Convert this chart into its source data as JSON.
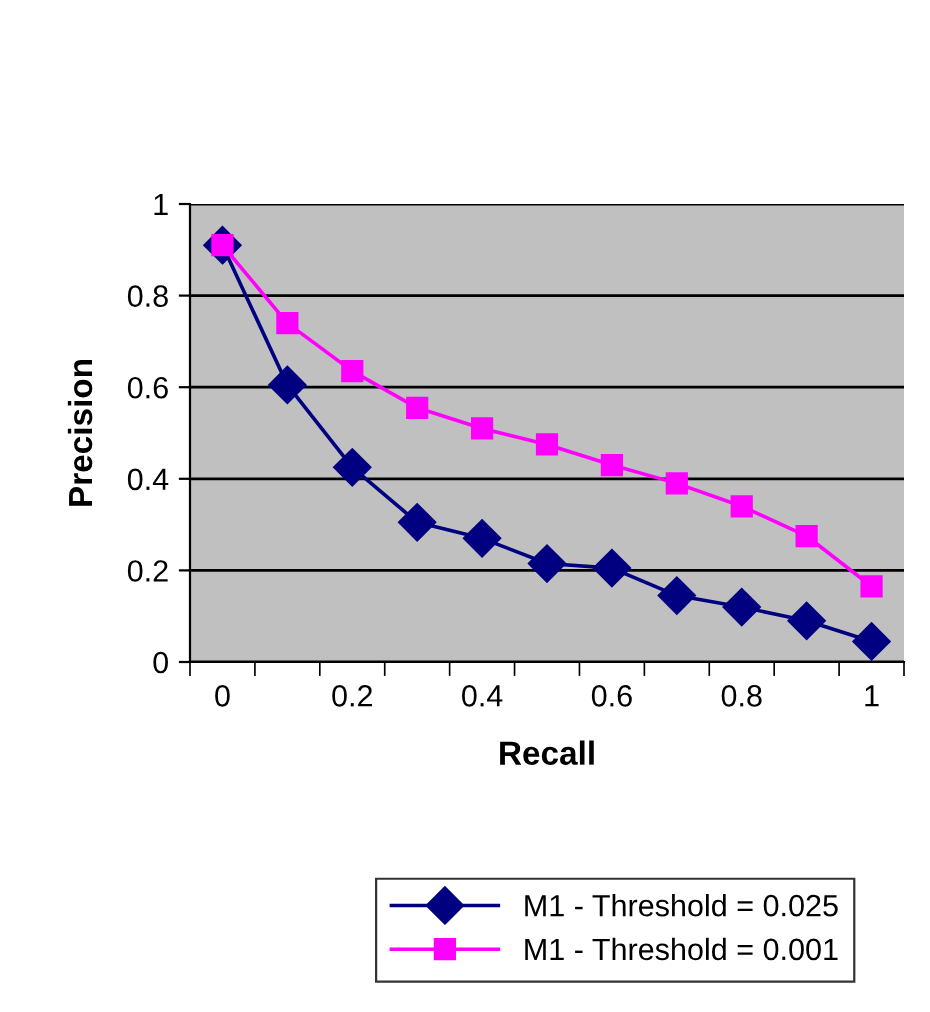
{
  "chart_data": {
    "type": "line",
    "xlabel": "Recall",
    "ylabel": "Precision",
    "categories": [
      "0",
      null,
      "0.2",
      null,
      "0.4",
      null,
      "0.6",
      null,
      "0.8",
      null,
      "1"
    ],
    "series": [
      {
        "name": "M1 - Threshold = 0.025",
        "color": "#000080",
        "marker": "diamond",
        "values": [
          0.91,
          0.605,
          0.425,
          0.305,
          0.27,
          0.215,
          0.205,
          0.145,
          0.12,
          0.09,
          0.045
        ]
      },
      {
        "name": "M1 - Threshold = 0.001",
        "color": "#ff00ff",
        "marker": "square",
        "values": [
          0.91,
          0.74,
          0.635,
          0.555,
          0.51,
          0.475,
          0.43,
          0.39,
          0.34,
          0.275,
          0.165
        ]
      }
    ],
    "ylim": [
      0,
      1
    ],
    "yticks": [
      0,
      0.2,
      0.4,
      0.6,
      0.8,
      1
    ],
    "grid": "y",
    "legend": "bottom",
    "line_style": "solid"
  }
}
